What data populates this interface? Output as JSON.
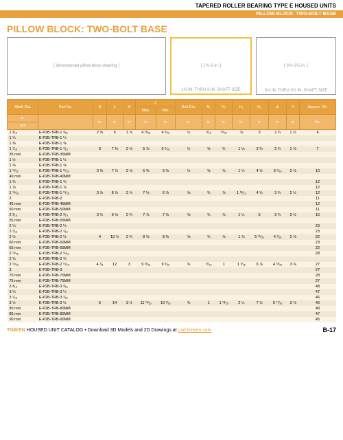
{
  "header": {
    "main": "TAPERED ROLLER BEARING TYPE E HOUSED UNITS",
    "sub": "PILLOW BLOCK: TWO-BOLT BASE"
  },
  "title": "PILLOW BLOCK: TWO-BOLT BASE",
  "diagrams": {
    "cap1": "",
    "cap2": "1⅜ IN. THRU 3 IN. SHAFT SIZE",
    "cap3": "3⅛ IN. THRU 3½ IN. SHAFT SIZE"
  },
  "cols": {
    "c1": "Shaft Dia.",
    "c2": "Part No.",
    "c3": "B",
    "c4": "L",
    "c5": "A",
    "c6": "J",
    "c6a": "Max.",
    "c6b": "Min.",
    "c7": "Bolt Dia.",
    "c8": "N₁",
    "c9": "N₂",
    "c10": "H₁",
    "c11": "H₂",
    "c12": "d₁",
    "c13": "H",
    "c14": "Approx. Wt."
  },
  "units": {
    "u1": "in.",
    "u2": "",
    "u3": "in.",
    "u4": "in.",
    "u5": "in.",
    "u6": "in.",
    "u7": "in.",
    "u8": "in.",
    "u9": "in.",
    "u10": "in.",
    "u11": "in.",
    "u12": "in.",
    "u13": "in.",
    "u14": "in.",
    "u15": "lbs."
  },
  "unitmm": "mm",
  "rows": [
    {
      "d": "1 ³⁄₁₆",
      "p": "E-P2B-TRB-1 ³⁄₁₆",
      "v": [
        "2 ⅜",
        "6",
        "1 ⅞",
        "4 ¹³⁄₁₆",
        "4 ⁹⁄₁₆",
        "½",
        "⁹⁄₁₆",
        "¹⁹⁄₃₂",
        "⅞",
        "3",
        "2 ¼",
        "1 ½",
        "4"
      ]
    },
    {
      "d": "1 ¼",
      "p": "E-P2B-TRB-1 ¼",
      "v": [
        "",
        "",
        "",
        "",
        "",
        "",
        "",
        "",
        "",
        "",
        "",
        "",
        ""
      ]
    },
    {
      "d": "1 ⅜",
      "p": "E-P2B-TRB-1 ⅜",
      "v": [
        "",
        "",
        "",
        "",
        "",
        "",
        "",
        "",
        "",
        "",
        "",
        "",
        ""
      ]
    },
    {
      "d": "1 ⁷⁄₁₆",
      "p": "E-P2B-TRB-1 ⁷⁄₁₆",
      "v": [
        "3",
        "7 ⅜",
        "2 ⅛",
        "5 ⅞",
        "5 ⁵⁄₁₆",
        "½",
        "⅝",
        "¾",
        "1 ⅛",
        "3 ¾",
        "2 ¾",
        "1 ⅞",
        "7"
      ]
    },
    {
      "d": "35 mm",
      "p": "E-P2B-TRB-35MM",
      "v": [
        "",
        "",
        "",
        "",
        "",
        "",
        "",
        "",
        "",
        "",
        "",
        "",
        ""
      ]
    },
    {
      "d": "1 ½",
      "p": "E-P2B-TRB-1 ½",
      "v": [
        "",
        "",
        "",
        "",
        "",
        "",
        "",
        "",
        "",
        "",
        "",
        "",
        ""
      ]
    },
    {
      "d": "1 ⅝",
      "p": "E-P2B-TRB-1 ⅝",
      "v": [
        "",
        "",
        "",
        "",
        "",
        "",
        "",
        "",
        "",
        "",
        "",
        "",
        ""
      ]
    },
    {
      "d": "1 ¹¹⁄₁₆",
      "p": "E-P2B-TRB-1 ¹¹⁄₁₆",
      "v": [
        "3 ⅜",
        "7 ⅞",
        "2 ⅛",
        "6 ⅜",
        "6 ⅛",
        "½",
        "⅝",
        "⅞",
        "1 ¼",
        "4 ½",
        "3 ⁵⁄₁₆",
        "2 ⅛",
        "10"
      ]
    },
    {
      "d": "40 mm",
      "p": "E-P2B-TRB-40MM",
      "v": [
        "",
        "",
        "",
        "",
        "",
        "",
        "",
        "",
        "",
        "",
        "",
        "",
        ""
      ]
    },
    {
      "d": "1 ¾",
      "p": "E-P2B-TRB-1 ¾",
      "v": [
        "",
        "",
        "",
        "",
        "",
        "",
        "",
        "",
        "",
        "",
        "",
        "",
        "12"
      ]
    },
    {
      "d": "1 ⅞",
      "p": "E-P2B-TRB-1 ⅞",
      "v": [
        "",
        "",
        "",
        "",
        "",
        "",
        "",
        "",
        "",
        "",
        "",
        "",
        "12"
      ]
    },
    {
      "d": "1 ¹⁵⁄₁₆",
      "p": "E-P2B-TRB-1 ¹⁵⁄₁₆",
      "v": [
        "3 ⅞",
        "8 ⅞",
        "2 ½",
        "7 ⅛",
        "6 ⅞",
        "⅝",
        "¾",
        "⅞",
        "1 ¹³⁄₃₂",
        "4 ½",
        "3 ¾",
        "2 ½",
        "12"
      ]
    },
    {
      "d": "2",
      "p": "E-P2B-TRB-2",
      "v": [
        "",
        "",
        "",
        "",
        "",
        "",
        "",
        "",
        "",
        "",
        "",
        "",
        "11"
      ]
    },
    {
      "d": "45 mm",
      "p": "E-P2B-TRB-45MM",
      "v": [
        "",
        "",
        "",
        "",
        "",
        "",
        "",
        "",
        "",
        "",
        "",
        "",
        "12"
      ]
    },
    {
      "d": "50 mm",
      "p": "E-P2B-TRB-50MM",
      "v": [
        "",
        "",
        "",
        "",
        "",
        "",
        "",
        "",
        "",
        "",
        "",
        "",
        "11"
      ]
    },
    {
      "d": "2 ³⁄₁₆",
      "p": "E-P2B-TRB-2 ³⁄₁₆",
      "v": [
        "3 ¾",
        "9 ⅝",
        "2 ¾",
        "7 ⅞",
        "7 ⅝",
        "⅝",
        "¾",
        "⅞",
        "1 ½",
        "5",
        "3 ¾",
        "2 ½",
        "15"
      ]
    },
    {
      "d": "55 mm",
      "p": "E-P2B-TRB-55MM",
      "v": [
        "",
        "",
        "",
        "",
        "",
        "",
        "",
        "",
        "",
        "",
        "",
        "",
        ""
      ]
    },
    {
      "d": "2 ¼",
      "p": "E-P2B-TRB-2 ¼",
      "v": [
        "",
        "",
        "",
        "",
        "",
        "",
        "",
        "",
        "",
        "",
        "",
        "",
        "23"
      ]
    },
    {
      "d": "2 ⁷⁄₁₆",
      "p": "E-P2B-TRB-2 ⁷⁄₁₆",
      "v": [
        "",
        "",
        "",
        "",
        "",
        "",
        "",
        "",
        "",
        "",
        "",
        "",
        "23"
      ]
    },
    {
      "d": "2 ½",
      "p": "E-P2B-TRB-2 ½",
      "v": [
        "4",
        "10 ½",
        "2 ¾",
        "8 ⅝",
        "8 ⅜",
        "⅝",
        "¾",
        "⅞",
        "1 ⅞",
        "5 ²⁵⁄₃₂",
        "4 ⁷⁄₁₆",
        "2 ⅞",
        "22"
      ]
    },
    {
      "d": "60 mm",
      "p": "E-P2B-TRB-60MM",
      "v": [
        "",
        "",
        "",
        "",
        "",
        "",
        "",
        "",
        "",
        "",
        "",
        "",
        "23"
      ]
    },
    {
      "d": "65 mm",
      "p": "E-P2B-TRB-65MM",
      "v": [
        "",
        "",
        "",
        "",
        "",
        "",
        "",
        "",
        "",
        "",
        "",
        "",
        "22"
      ]
    },
    {
      "d": "2 ¹¹⁄₁₆",
      "p": "E-P2B-TRB-2 ¹¹⁄₁₆",
      "v": [
        "",
        "",
        "",
        "",
        "",
        "",
        "",
        "",
        "",
        "",
        "",
        "",
        "28"
      ]
    },
    {
      "d": "2 ¾",
      "p": "E-P2B-TRB-2 ¾",
      "v": [
        "",
        "",
        "",
        "",
        "",
        "",
        "",
        "",
        "",
        "",
        "",
        "",
        ""
      ]
    },
    {
      "d": "2 ¹⁵⁄₁₆",
      "p": "E-P2B-TRB-2 ¹⁵⁄₁₆",
      "v": [
        "4 ⁷⁄₈",
        "12",
        "3",
        "9 ¹³⁄₁₆",
        "9 ⁹⁄₁₆",
        "¾",
        "²⁷⁄₃₂",
        "1",
        "1 ⁹⁄₁₆",
        "6 ⅞",
        "4 ²³⁄₃₂",
        "3 ⅛",
        "27"
      ]
    },
    {
      "d": "3",
      "p": "E-P2B-TRB-3",
      "v": [
        "",
        "",
        "",
        "",
        "",
        "",
        "",
        "",
        "",
        "",
        "",
        "",
        "27"
      ]
    },
    {
      "d": "70 mm",
      "p": "E-P2B-TRB-70MM",
      "v": [
        "",
        "",
        "",
        "",
        "",
        "",
        "",
        "",
        "",
        "",
        "",
        "",
        "28"
      ]
    },
    {
      "d": "75 mm",
      "p": "E-P2B-TRB-75MM",
      "v": [
        "",
        "",
        "",
        "",
        "",
        "",
        "",
        "",
        "",
        "",
        "",
        "",
        "27"
      ]
    },
    {
      "d": "3 ³⁄₁₆",
      "p": "E-P2B-TRB-3 ³⁄₁₆",
      "v": [
        "",
        "",
        "",
        "",
        "",
        "",
        "",
        "",
        "",
        "",
        "",
        "",
        "48"
      ]
    },
    {
      "d": "3 ¼",
      "p": "E-P2B-TRB-3 ¼",
      "v": [
        "",
        "",
        "",
        "",
        "",
        "",
        "",
        "",
        "",
        "",
        "",
        "",
        "47"
      ]
    },
    {
      "d": "3 ⁷⁄₁₆",
      "p": "E-P2B-TRB-3 ⁷⁄₁₆",
      "v": [
        "",
        "",
        "",
        "",
        "",
        "",
        "",
        "",
        "",
        "",
        "",
        "",
        "46"
      ]
    },
    {
      "d": "3 ½",
      "p": "E-P2B-TRB-3 ½",
      "v": [
        "5",
        "14",
        "3 ½",
        "11 ¹³⁄₁₆",
        "10 ³⁄₁₆",
        "¾",
        "1",
        "1 ¹³⁄₁₆",
        "2 ½",
        "7 ½",
        "5 ¹⁷⁄₃₂",
        "3 ⅞",
        "46"
      ]
    },
    {
      "d": "80 mm",
      "p": "E-P2B-TRB-80MM",
      "v": [
        "",
        "",
        "",
        "",
        "",
        "",
        "",
        "",
        "",
        "",
        "",
        "",
        "48"
      ]
    },
    {
      "d": "85 mm",
      "p": "E-P2B-TRB-85MM",
      "v": [
        "",
        "",
        "",
        "",
        "",
        "",
        "",
        "",
        "",
        "",
        "",
        "",
        "47"
      ]
    },
    {
      "d": "90 mm",
      "p": "E-P2B-TRB-90MM",
      "v": [
        "",
        "",
        "",
        "",
        "",
        "",
        "",
        "",
        "",
        "",
        "",
        "",
        "45"
      ]
    }
  ],
  "footer": {
    "brand": "TIMKEN",
    "text": "HOUSED UNIT CATALOG • Download 3D Models and 2D Drawings at",
    "link": "cad.timken.com",
    "page": "B-17"
  }
}
